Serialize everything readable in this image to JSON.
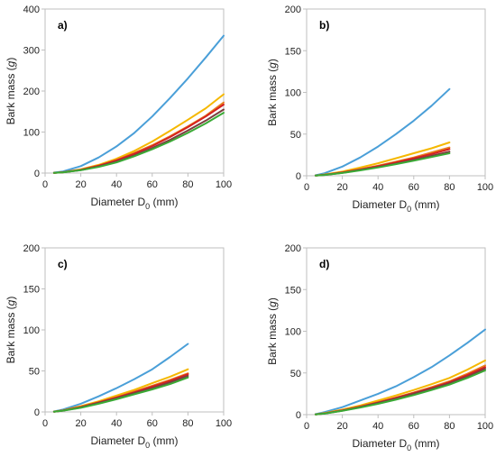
{
  "chart_data": [
    {
      "type": "line",
      "panel_label": "a)",
      "xlabel": "Diameter D",
      "xlabel_sub": "0",
      "xlabel_unit": " (mm)",
      "ylabel": "Bark mass (",
      "ylabel_unit": "g",
      "ylabel_close": ")",
      "xlim": [
        0,
        100
      ],
      "ylim": [
        0,
        400
      ],
      "xticks": [
        0,
        20,
        40,
        60,
        80,
        100
      ],
      "yticks": [
        0,
        100,
        200,
        300,
        400
      ],
      "series": [
        {
          "color": "#4a9fd8",
          "x": [
            5,
            10,
            20,
            30,
            40,
            50,
            60,
            70,
            80,
            90,
            100
          ],
          "y": [
            1,
            4,
            17,
            38,
            65,
            98,
            138,
            183,
            231,
            282,
            335
          ]
        },
        {
          "color": "#f5b800",
          "x": [
            5,
            10,
            20,
            30,
            40,
            50,
            60,
            70,
            80,
            90,
            100
          ],
          "y": [
            0.5,
            2,
            9,
            20,
            35,
            54,
            77,
            103,
            130,
            158,
            192
          ]
        },
        {
          "color": "#e8801e",
          "x": [
            5,
            10,
            20,
            30,
            40,
            50,
            60,
            70,
            80,
            90,
            100
          ],
          "y": [
            0.5,
            2,
            8,
            18,
            32,
            49,
            68,
            90,
            114,
            140,
            172
          ]
        },
        {
          "color": "#d62020",
          "x": [
            5,
            10,
            20,
            30,
            40,
            50,
            60,
            70,
            80,
            90,
            100
          ],
          "y": [
            0.5,
            2,
            8,
            18,
            31,
            47,
            66,
            88,
            112,
            138,
            167
          ]
        },
        {
          "color": "#7a3e3e",
          "x": [
            5,
            10,
            20,
            30,
            40,
            50,
            60,
            70,
            80,
            90,
            100
          ],
          "y": [
            0.5,
            2,
            7,
            16,
            28,
            43,
            61,
            81,
            104,
            128,
            155
          ]
        },
        {
          "color": "#3aaa35",
          "x": [
            5,
            10,
            20,
            30,
            40,
            50,
            60,
            70,
            80,
            90,
            100
          ],
          "y": [
            0.5,
            1.5,
            7,
            15,
            26,
            41,
            58,
            77,
            98,
            121,
            147
          ]
        }
      ]
    },
    {
      "type": "line",
      "panel_label": "b)",
      "xlabel": "Diameter D",
      "xlabel_sub": "0",
      "xlabel_unit": " (mm)",
      "ylabel": "Bark mass (",
      "ylabel_unit": "g",
      "ylabel_close": ")",
      "xlim": [
        0,
        100
      ],
      "ylim": [
        0,
        200
      ],
      "xticks": [
        0,
        20,
        40,
        60,
        80,
        100
      ],
      "yticks": [
        0,
        50,
        100,
        150,
        200
      ],
      "series": [
        {
          "color": "#4a9fd8",
          "x": [
            5,
            10,
            20,
            30,
            40,
            50,
            60,
            70,
            80
          ],
          "y": [
            0.5,
            3,
            11,
            22,
            35,
            50,
            66,
            84,
            104
          ]
        },
        {
          "color": "#f5b800",
          "x": [
            5,
            10,
            20,
            30,
            40,
            50,
            60,
            70,
            80
          ],
          "y": [
            0.3,
            1.5,
            5,
            10,
            15,
            21,
            27,
            33,
            40
          ]
        },
        {
          "color": "#e8801e",
          "x": [
            5,
            10,
            20,
            30,
            40,
            50,
            60,
            70,
            80
          ],
          "y": [
            0.3,
            1.2,
            4,
            8,
            12,
            17,
            22,
            28,
            34
          ]
        },
        {
          "color": "#d62020",
          "x": [
            5,
            10,
            20,
            30,
            40,
            50,
            60,
            70,
            80
          ],
          "y": [
            0.3,
            1.1,
            4,
            7.5,
            11.5,
            16,
            21,
            26,
            32
          ]
        },
        {
          "color": "#7a3e3e",
          "x": [
            5,
            10,
            20,
            30,
            40,
            50,
            60,
            70,
            80
          ],
          "y": [
            0.3,
            1,
            3.5,
            7,
            10.5,
            14.5,
            19,
            24,
            29
          ]
        },
        {
          "color": "#3aaa35",
          "x": [
            5,
            10,
            20,
            30,
            40,
            50,
            60,
            70,
            80
          ],
          "y": [
            0.3,
            1,
            3.3,
            6.5,
            10,
            14,
            18,
            22.5,
            27
          ]
        }
      ]
    },
    {
      "type": "line",
      "panel_label": "c)",
      "xlabel": "Diameter D",
      "xlabel_sub": "0",
      "xlabel_unit": " (mm)",
      "ylabel": "Bark mass (",
      "ylabel_unit": "g",
      "ylabel_close": ")",
      "xlim": [
        0,
        100
      ],
      "ylim": [
        0,
        200
      ],
      "xticks": [
        0,
        20,
        40,
        60,
        80,
        100
      ],
      "yticks": [
        0,
        50,
        100,
        150,
        200
      ],
      "series": [
        {
          "color": "#4a9fd8",
          "x": [
            5,
            10,
            20,
            30,
            40,
            50,
            60,
            70,
            80
          ],
          "y": [
            0.5,
            3,
            10,
            19,
            29,
            40,
            52,
            67,
            83
          ]
        },
        {
          "color": "#f5b800",
          "x": [
            5,
            10,
            20,
            30,
            40,
            50,
            60,
            70,
            80
          ],
          "y": [
            0.4,
            2,
            7,
            13,
            20,
            27,
            35,
            43,
            52
          ]
        },
        {
          "color": "#e8801e",
          "x": [
            5,
            10,
            20,
            30,
            40,
            50,
            60,
            70,
            80
          ],
          "y": [
            0.3,
            1.8,
            6,
            12,
            18,
            25,
            32,
            39,
            47
          ]
        },
        {
          "color": "#d62020",
          "x": [
            5,
            10,
            20,
            30,
            40,
            50,
            60,
            70,
            80
          ],
          "y": [
            0.3,
            1.7,
            6,
            11.5,
            17.5,
            24,
            31,
            38,
            46
          ]
        },
        {
          "color": "#7a3e3e",
          "x": [
            5,
            10,
            20,
            30,
            40,
            50,
            60,
            70,
            80
          ],
          "y": [
            0.3,
            1.6,
            5.5,
            11,
            16.5,
            23,
            29,
            36,
            44
          ]
        },
        {
          "color": "#3aaa35",
          "x": [
            5,
            10,
            20,
            30,
            40,
            50,
            60,
            70,
            80
          ],
          "y": [
            0.3,
            1.5,
            5,
            10,
            15.5,
            21.5,
            27.5,
            34,
            42
          ]
        }
      ]
    },
    {
      "type": "line",
      "panel_label": "d)",
      "xlabel": "Diameter D",
      "xlabel_sub": "0",
      "xlabel_unit": " (mm)",
      "ylabel": "Bark mass (",
      "ylabel_unit": "g",
      "ylabel_close": ")",
      "xlim": [
        0,
        100
      ],
      "ylim": [
        0,
        200
      ],
      "xticks": [
        0,
        20,
        40,
        60,
        80,
        100
      ],
      "yticks": [
        0,
        50,
        100,
        150,
        200
      ],
      "series": [
        {
          "color": "#4a9fd8",
          "x": [
            5,
            10,
            20,
            30,
            40,
            50,
            60,
            70,
            80,
            90,
            100
          ],
          "y": [
            0.5,
            3,
            9,
            17,
            25,
            34,
            45,
            57,
            71,
            86,
            102
          ]
        },
        {
          "color": "#f5b800",
          "x": [
            5,
            10,
            20,
            30,
            40,
            50,
            60,
            70,
            80,
            90,
            100
          ],
          "y": [
            0.3,
            1.8,
            6,
            11,
            17,
            23,
            29.5,
            36.5,
            44,
            54,
            65
          ]
        },
        {
          "color": "#e8801e",
          "x": [
            5,
            10,
            20,
            30,
            40,
            50,
            60,
            70,
            80,
            90,
            100
          ],
          "y": [
            0.3,
            1.5,
            5.5,
            10,
            15,
            20.5,
            26.5,
            33,
            40,
            49,
            59
          ]
        },
        {
          "color": "#d62020",
          "x": [
            5,
            10,
            20,
            30,
            40,
            50,
            60,
            70,
            80,
            90,
            100
          ],
          "y": [
            0.3,
            1.4,
            5,
            9.5,
            14.5,
            20,
            26,
            32,
            39,
            47.5,
            57
          ]
        },
        {
          "color": "#7a3e3e",
          "x": [
            5,
            10,
            20,
            30,
            40,
            50,
            60,
            70,
            80,
            90,
            100
          ],
          "y": [
            0.3,
            1.3,
            4.8,
            9,
            14,
            19,
            25,
            31,
            37.5,
            45.5,
            55
          ]
        },
        {
          "color": "#3aaa35",
          "x": [
            5,
            10,
            20,
            30,
            40,
            50,
            60,
            70,
            80,
            90,
            100
          ],
          "y": [
            0.3,
            1.2,
            4.5,
            8.5,
            13,
            18,
            23.5,
            29.5,
            36,
            44,
            53
          ]
        }
      ]
    }
  ]
}
